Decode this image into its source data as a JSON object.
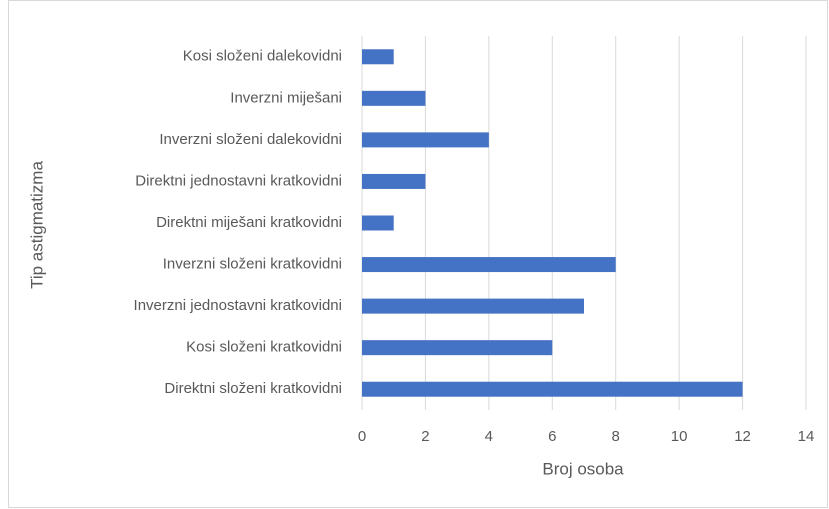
{
  "chart_data": {
    "type": "barh",
    "categories": [
      "Kosi složeni dalekovidni",
      "Inverzni miješani",
      "Inverzni složeni dalekovidni",
      "Direktni jednostavni kratkovidni",
      "Direktni miješani kratkovidni",
      "Inverzni složeni kratkovidni",
      "Inverzni jednostavni kratkovidni",
      "Kosi složeni kratkovidni",
      "Direktni složeni kratkovidni"
    ],
    "values": [
      1,
      2,
      4,
      2,
      1,
      8,
      7,
      6,
      12
    ],
    "color": "#4472c4",
    "xlim": [
      0,
      14
    ],
    "xticks": [
      0,
      2,
      4,
      6,
      8,
      10,
      12,
      14
    ],
    "grid": true,
    "xlabel": "Broj osoba",
    "ylabel": "Tip astigmatizma"
  }
}
